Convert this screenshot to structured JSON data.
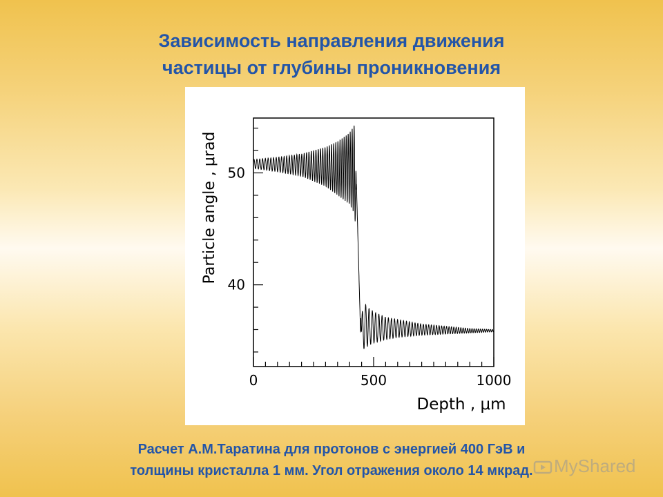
{
  "slide": {
    "title_lines": [
      "Зависимость направления движения",
      "частицы от глубины проникновения"
    ],
    "caption_lines": [
      "Расчет А.М.Таратина для протонов с энергией 400 ГэВ и",
      "толщины кристалла 1 мм. Угол отражения около 14 мкрад."
    ],
    "watermark": "MyShared",
    "colors": {
      "text": "#2355a8",
      "background_top": "#f0c24e",
      "background_mid": "#fffaf0"
    }
  },
  "chart_data": {
    "type": "line",
    "xlabel": "Depth , μm",
    "ylabel": "Particle angle , μrad",
    "xlim": [
      0,
      1000
    ],
    "ylim": [
      32.7,
      54.9
    ],
    "x_ticks": [
      "0",
      "500",
      "1000"
    ],
    "y_ticks": [
      "50",
      "40"
    ],
    "x_tick_values": [
      0,
      500,
      1000
    ],
    "y_tick_values": [
      50,
      40
    ],
    "grid": false,
    "line_color": "#000000",
    "series": [
      {
        "envelope": {
          "x": [
            0,
            100,
            200,
            300,
            350,
            400,
            420,
            440,
            450,
            460,
            480,
            500,
            550,
            600,
            700,
            800,
            900,
            1000
          ],
          "upper": [
            51.2,
            51.4,
            51.7,
            52.3,
            52.8,
            53.6,
            54.3,
            42.0,
            37.3,
            38.4,
            37.9,
            37.6,
            37.1,
            36.9,
            36.5,
            36.3,
            36.1,
            36.0
          ],
          "lower": [
            50.4,
            50.1,
            49.7,
            48.8,
            48.0,
            47.2,
            46.3,
            42.0,
            33.7,
            34.3,
            34.6,
            34.8,
            35.1,
            35.3,
            35.5,
            35.6,
            35.7,
            35.8
          ]
        }
      }
    ]
  }
}
